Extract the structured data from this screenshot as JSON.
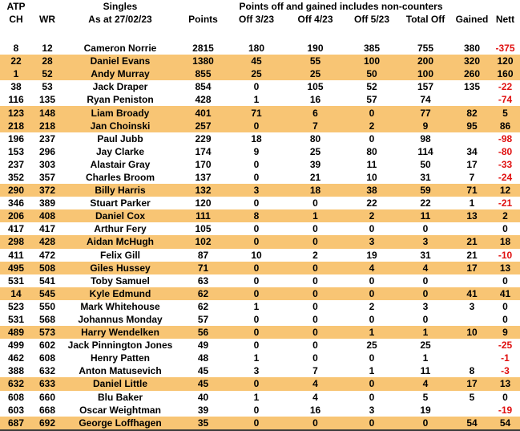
{
  "title": "ATP Singles points off and gained table as at 27/02/23",
  "colors": {
    "highlight_row": "#F8C574",
    "negative_text": "#E01010",
    "frame_line": "#3b3b3b",
    "background": "#FFFFFF",
    "text": "#000000"
  },
  "header": {
    "group_row": {
      "atp": "ATP",
      "singles": "Singles",
      "note": "Points off and gained includes non-counters"
    },
    "columns": [
      "CH",
      "WR",
      "As at 27/02/23",
      "Points",
      "Off 3/23",
      "Off 4/23",
      "Off 5/23",
      "Total Off",
      "Gained",
      "Nett"
    ]
  },
  "table": {
    "rows": [
      {
        "cells": [
          "8",
          "12",
          "Cameron Norrie",
          "2815",
          "180",
          "190",
          "385",
          "755",
          "380",
          "-375"
        ],
        "highlight": false
      },
      {
        "cells": [
          "22",
          "28",
          "Daniel Evans",
          "1380",
          "45",
          "55",
          "100",
          "200",
          "320",
          "120"
        ],
        "highlight": true
      },
      {
        "cells": [
          "1",
          "52",
          "Andy Murray",
          "855",
          "25",
          "25",
          "50",
          "100",
          "260",
          "160"
        ],
        "highlight": true
      },
      {
        "cells": [
          "38",
          "53",
          "Jack Draper",
          "854",
          "0",
          "105",
          "52",
          "157",
          "135",
          "-22"
        ],
        "highlight": false
      },
      {
        "cells": [
          "116",
          "135",
          "Ryan Peniston",
          "428",
          "1",
          "16",
          "57",
          "74",
          "",
          "-74"
        ],
        "highlight": false
      },
      {
        "cells": [
          "123",
          "148",
          "Liam Broady",
          "401",
          "71",
          "6",
          "0",
          "77",
          "82",
          "5"
        ],
        "highlight": true
      },
      {
        "cells": [
          "218",
          "218",
          "Jan Choinski",
          "257",
          "0",
          "7",
          "2",
          "9",
          "95",
          "86"
        ],
        "highlight": true
      },
      {
        "cells": [
          "196",
          "237",
          "Paul Jubb",
          "229",
          "18",
          "80",
          "0",
          "98",
          "",
          "-98"
        ],
        "highlight": false
      },
      {
        "cells": [
          "153",
          "296",
          "Jay Clarke",
          "174",
          "9",
          "25",
          "80",
          "114",
          "34",
          "-80"
        ],
        "highlight": false
      },
      {
        "cells": [
          "237",
          "303",
          "Alastair Gray",
          "170",
          "0",
          "39",
          "11",
          "50",
          "17",
          "-33"
        ],
        "highlight": false
      },
      {
        "cells": [
          "352",
          "357",
          "Charles Broom",
          "137",
          "0",
          "21",
          "10",
          "31",
          "7",
          "-24"
        ],
        "highlight": false
      },
      {
        "cells": [
          "290",
          "372",
          "Billy Harris",
          "132",
          "3",
          "18",
          "38",
          "59",
          "71",
          "12"
        ],
        "highlight": true
      },
      {
        "cells": [
          "346",
          "389",
          "Stuart Parker",
          "120",
          "0",
          "0",
          "22",
          "22",
          "1",
          "-21"
        ],
        "highlight": false
      },
      {
        "cells": [
          "206",
          "408",
          "Daniel Cox",
          "111",
          "8",
          "1",
          "2",
          "11",
          "13",
          "2"
        ],
        "highlight": true
      },
      {
        "cells": [
          "417",
          "417",
          "Arthur Fery",
          "105",
          "0",
          "0",
          "0",
          "0",
          "",
          "0"
        ],
        "highlight": false
      },
      {
        "cells": [
          "298",
          "428",
          "Aidan McHugh",
          "102",
          "0",
          "0",
          "3",
          "3",
          "21",
          "18"
        ],
        "highlight": true
      },
      {
        "cells": [
          "411",
          "472",
          "Felix Gill",
          "87",
          "10",
          "2",
          "19",
          "31",
          "21",
          "-10"
        ],
        "highlight": false
      },
      {
        "cells": [
          "495",
          "508",
          "Giles Hussey",
          "71",
          "0",
          "0",
          "4",
          "4",
          "17",
          "13"
        ],
        "highlight": true
      },
      {
        "cells": [
          "531",
          "541",
          "Toby Samuel",
          "63",
          "0",
          "0",
          "0",
          "0",
          "",
          "0"
        ],
        "highlight": false
      },
      {
        "cells": [
          "14",
          "545",
          "Kyle Edmund",
          "62",
          "0",
          "0",
          "0",
          "0",
          "41",
          "41"
        ],
        "highlight": true
      },
      {
        "cells": [
          "523",
          "550",
          "Mark Whitehouse",
          "62",
          "1",
          "0",
          "2",
          "3",
          "3",
          "0"
        ],
        "highlight": false
      },
      {
        "cells": [
          "531",
          "568",
          "Johannus Monday",
          "57",
          "0",
          "0",
          "0",
          "0",
          "",
          "0"
        ],
        "highlight": false
      },
      {
        "cells": [
          "489",
          "573",
          "Harry Wendelken",
          "56",
          "0",
          "0",
          "1",
          "1",
          "10",
          "9"
        ],
        "highlight": true
      },
      {
        "cells": [
          "499",
          "602",
          "Jack Pinnington Jones",
          "49",
          "0",
          "0",
          "25",
          "25",
          "",
          "-25"
        ],
        "highlight": false
      },
      {
        "cells": [
          "462",
          "608",
          "Henry Patten",
          "48",
          "1",
          "0",
          "0",
          "1",
          "",
          "-1"
        ],
        "highlight": false
      },
      {
        "cells": [
          "388",
          "632",
          "Anton Matusevich",
          "45",
          "3",
          "7",
          "1",
          "11",
          "8",
          "-3"
        ],
        "highlight": false
      },
      {
        "cells": [
          "632",
          "633",
          "Daniel Little",
          "45",
          "0",
          "4",
          "0",
          "4",
          "17",
          "13"
        ],
        "highlight": true
      },
      {
        "cells": [
          "608",
          "660",
          "Blu Baker",
          "40",
          "1",
          "4",
          "0",
          "5",
          "5",
          "0"
        ],
        "highlight": false
      },
      {
        "cells": [
          "603",
          "668",
          "Oscar Weightman",
          "39",
          "0",
          "16",
          "3",
          "19",
          "",
          "-19"
        ],
        "highlight": false
      },
      {
        "cells": [
          "687",
          "692",
          "George Loffhagen",
          "35",
          "0",
          "0",
          "0",
          "0",
          "54",
          "54"
        ],
        "highlight": true
      }
    ]
  }
}
